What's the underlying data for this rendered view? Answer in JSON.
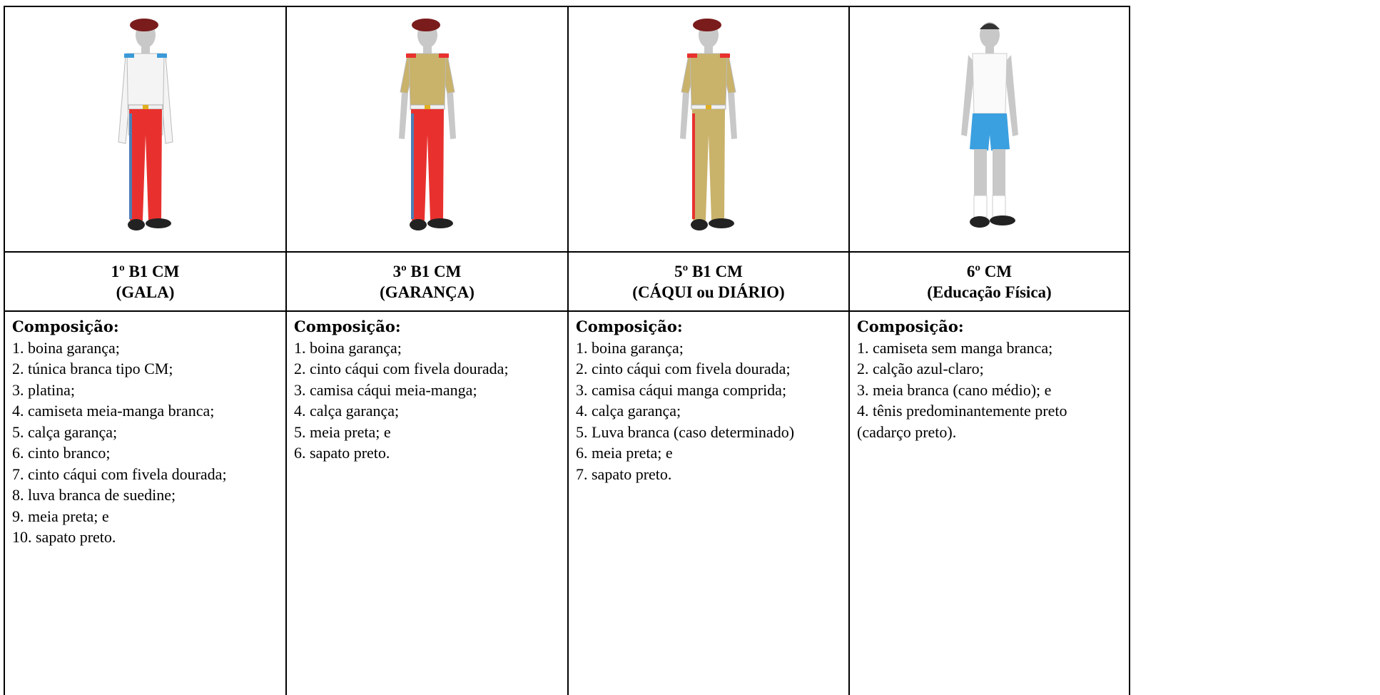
{
  "columns": [
    {
      "title": [
        "1º B1 CM",
        "(GALA)"
      ],
      "composition_label": "Composição:",
      "items": [
        "1. boina garança;",
        "2. túnica branca tipo CM;",
        "3. platina;",
        "4. camiseta meia-manga branca;",
        "5. calça garança;",
        "6. cinto branco;",
        "7. cinto cáqui com fivela dourada;",
        "8. luva branca de suedine;",
        "9. meia preta; e",
        "10. sapato preto."
      ]
    },
    {
      "title": [
        "3º B1 CM",
        "(GARANÇA)"
      ],
      "composition_label": "Composição:",
      "items": [
        "1. boina garança;",
        "2. cinto cáqui com fivela dourada;",
        "3. camisa cáqui meia-manga;",
        "4. calça garança;",
        "5. meia preta; e",
        "6. sapato preto."
      ]
    },
    {
      "title": [
        "5º B1 CM",
        "(CÁQUI ou DIÁRIO)"
      ],
      "composition_label": "Composição:",
      "items": [
        "1. boina garança;",
        "2. cinto cáqui com fivela dourada;",
        "3. camisa cáqui manga comprida;",
        "4. calça garança;",
        "5. Luva branca (caso determinado)",
        "6. meia preta; e",
        "7. sapato preto."
      ]
    },
    {
      "title": [
        "6º CM",
        "(Educação Física)"
      ],
      "composition_label": "Composição:",
      "items": [
        "1. camiseta sem manga branca;",
        "2. calção azul-claro;",
        "3. meia branca (cano médio); e",
        "4. tênis predominantemente preto (cadarço preto)."
      ]
    }
  ]
}
